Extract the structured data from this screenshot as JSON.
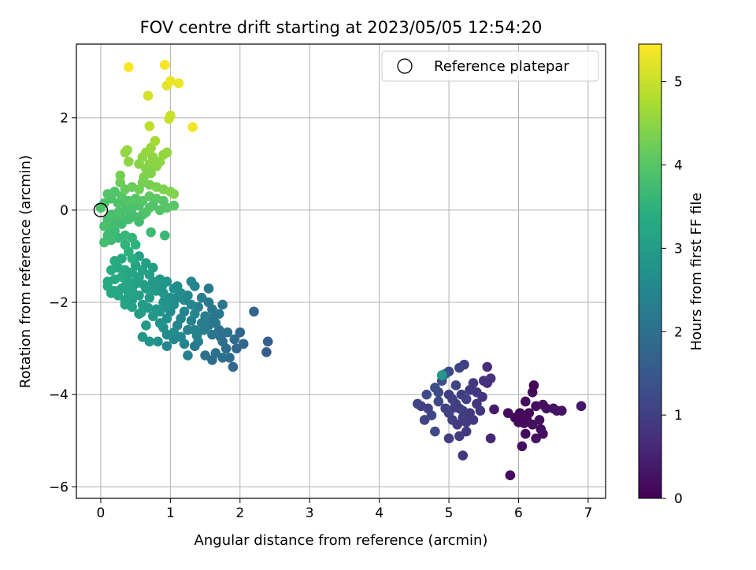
{
  "chart_data": {
    "type": "scatter",
    "title": "FOV centre drift starting at 2023/05/05 12:54:20",
    "xlabel": "Angular distance from reference (arcmin)",
    "ylabel": "Rotation from reference (arcmin)",
    "xlim": [
      -0.35,
      7.25
    ],
    "ylim": [
      -6.25,
      3.6
    ],
    "xticks": [
      0,
      1,
      2,
      3,
      4,
      5,
      6,
      7
    ],
    "yticks": [
      -6,
      -4,
      -2,
      0,
      2
    ],
    "grid": true,
    "legend": {
      "placement": "top-right",
      "entries": [
        {
          "label": "Reference platepar",
          "marker": "open-circle"
        }
      ]
    },
    "reference_point": {
      "x": 0,
      "y": 0
    },
    "colorbar": {
      "label": "Hours from first FF file",
      "range": [
        0,
        5.45
      ],
      "ticks": [
        0,
        1,
        2,
        3,
        4,
        5
      ],
      "colormap": "viridis"
    },
    "points": [
      [
        5.88,
        -5.75,
        0.15
      ],
      [
        6.05,
        -5.12,
        0.2
      ],
      [
        6.25,
        -4.95,
        0.25
      ],
      [
        6.1,
        -4.85,
        0.15
      ],
      [
        6.35,
        -4.85,
        0.2
      ],
      [
        6.32,
        -4.75,
        0.22
      ],
      [
        6.2,
        -4.65,
        0.18
      ],
      [
        6.0,
        -4.6,
        0.12
      ],
      [
        6.12,
        -4.55,
        0.16
      ],
      [
        5.95,
        -4.5,
        0.1
      ],
      [
        6.05,
        -4.45,
        0.14
      ],
      [
        6.15,
        -4.4,
        0.13
      ],
      [
        5.85,
        -4.4,
        0.18
      ],
      [
        6.3,
        -4.55,
        0.22
      ],
      [
        6.4,
        -4.3,
        0.25
      ],
      [
        6.5,
        -4.3,
        0.28
      ],
      [
        6.55,
        -4.35,
        0.3
      ],
      [
        6.62,
        -4.35,
        0.3
      ],
      [
        6.9,
        -4.25,
        0.35
      ],
      [
        6.25,
        -4.25,
        0.2
      ],
      [
        6.35,
        -4.22,
        0.24
      ],
      [
        6.1,
        -4.15,
        0.15
      ],
      [
        6.2,
        -3.95,
        0.1
      ],
      [
        6.22,
        -3.8,
        0.1
      ],
      [
        5.65,
        -4.32,
        0.4
      ],
      [
        6.02,
        -4.4,
        0.12
      ],
      [
        6.08,
        -4.62,
        0.16
      ],
      [
        4.55,
        -4.2,
        1.1
      ],
      [
        4.6,
        -4.25,
        1.0
      ],
      [
        4.7,
        -4.3,
        1.05
      ],
      [
        4.65,
        -4.55,
        1.1
      ],
      [
        4.8,
        -4.8,
        1.2
      ],
      [
        4.75,
        -4.45,
        1.15
      ],
      [
        4.68,
        -4.0,
        1.25
      ],
      [
        4.8,
        -3.85,
        1.3
      ],
      [
        4.85,
        -3.95,
        1.2
      ],
      [
        4.9,
        -3.7,
        1.3
      ],
      [
        4.95,
        -3.55,
        1.35
      ],
      [
        5.0,
        -3.5,
        1.2
      ],
      [
        5.1,
        -3.8,
        1.1
      ],
      [
        5.15,
        -3.42,
        1.1
      ],
      [
        5.22,
        -3.35,
        1.0
      ],
      [
        5.0,
        -4.0,
        1.0
      ],
      [
        5.05,
        -4.1,
        1.05
      ],
      [
        5.1,
        -4.2,
        1.0
      ],
      [
        5.15,
        -4.3,
        0.95
      ],
      [
        5.2,
        -4.35,
        1.0
      ],
      [
        5.25,
        -4.1,
        1.05
      ],
      [
        4.95,
        -4.3,
        1.1
      ],
      [
        5.0,
        -4.4,
        1.05
      ],
      [
        5.05,
        -4.55,
        1.0
      ],
      [
        5.12,
        -4.65,
        0.9
      ],
      [
        5.2,
        -4.5,
        0.95
      ],
      [
        5.3,
        -4.4,
        0.9
      ],
      [
        5.35,
        -4.55,
        0.9
      ],
      [
        5.4,
        -4.2,
        0.85
      ],
      [
        5.45,
        -4.35,
        0.85
      ],
      [
        5.48,
        -4.05,
        0.8
      ],
      [
        5.4,
        -3.95,
        0.85
      ],
      [
        5.3,
        -3.9,
        0.9
      ],
      [
        5.5,
        -3.7,
        0.8
      ],
      [
        5.55,
        -3.4,
        0.7
      ],
      [
        5.6,
        -3.65,
        0.75
      ],
      [
        5.35,
        -3.75,
        0.9
      ],
      [
        5.55,
        -3.75,
        0.7
      ],
      [
        5.25,
        -4.8,
        0.9
      ],
      [
        5.15,
        -4.9,
        0.95
      ],
      [
        5.0,
        -4.95,
        1.0
      ],
      [
        5.2,
        -5.32,
        0.85
      ],
      [
        5.6,
        -4.95,
        0.6
      ],
      [
        4.85,
        -4.15,
        1.2
      ],
      [
        5.08,
        -4.28,
        1.0
      ],
      [
        5.25,
        -4.6,
        0.95
      ],
      [
        5.18,
        -4.0,
        1.0
      ],
      [
        4.9,
        -3.58,
        2.9
      ],
      [
        0.95,
        -2.95,
        2.5
      ],
      [
        1.25,
        -3.15,
        2.4
      ],
      [
        1.35,
        -2.95,
        2.2
      ],
      [
        1.4,
        -2.85,
        2.3
      ],
      [
        1.5,
        -3.15,
        2.0
      ],
      [
        1.6,
        -3.25,
        1.9
      ],
      [
        1.65,
        -3.1,
        2.0
      ],
      [
        1.75,
        -3.2,
        2.0
      ],
      [
        1.9,
        -3.4,
        1.8
      ],
      [
        1.85,
        -3.2,
        1.9
      ],
      [
        1.95,
        -3.0,
        1.8
      ],
      [
        1.8,
        -3.0,
        1.9
      ],
      [
        2.05,
        -2.9,
        1.8
      ],
      [
        2.0,
        -2.65,
        1.8
      ],
      [
        2.2,
        -2.2,
        1.7
      ],
      [
        2.4,
        -2.85,
        1.6
      ],
      [
        2.38,
        -3.08,
        1.6
      ],
      [
        1.92,
        -2.8,
        1.9
      ],
      [
        1.75,
        -2.85,
        1.95
      ],
      [
        1.7,
        -2.6,
        2.0
      ],
      [
        1.6,
        -2.7,
        2.1
      ],
      [
        1.55,
        -2.5,
        2.2
      ],
      [
        1.65,
        -2.45,
        2.15
      ],
      [
        1.7,
        -2.25,
        2.1
      ],
      [
        1.75,
        -2.05,
        2.1
      ],
      [
        1.6,
        -2.15,
        2.2
      ],
      [
        1.5,
        -2.3,
        2.3
      ],
      [
        1.45,
        -2.45,
        2.3
      ],
      [
        1.35,
        -2.6,
        2.4
      ],
      [
        1.25,
        -2.6,
        2.4
      ],
      [
        1.3,
        -2.4,
        2.4
      ],
      [
        1.35,
        -2.25,
        2.5
      ],
      [
        1.2,
        -2.2,
        2.5
      ],
      [
        1.15,
        -2.35,
        2.5
      ],
      [
        1.1,
        -2.5,
        2.5
      ],
      [
        1.05,
        -2.65,
        2.6
      ],
      [
        1.15,
        -2.75,
        2.5
      ],
      [
        1.2,
        -2.9,
        2.45
      ],
      [
        1.05,
        -2.8,
        2.55
      ],
      [
        0.95,
        -2.7,
        2.6
      ],
      [
        0.9,
        -2.55,
        2.7
      ],
      [
        0.85,
        -2.45,
        2.8
      ],
      [
        0.95,
        -2.35,
        2.7
      ],
      [
        1.0,
        -2.2,
        2.6
      ],
      [
        1.05,
        -2.05,
        2.6
      ],
      [
        1.1,
        -1.9,
        2.6
      ],
      [
        1.15,
        -1.8,
        2.6
      ],
      [
        1.2,
        -1.95,
        2.5
      ],
      [
        1.3,
        -2.05,
        2.5
      ],
      [
        1.25,
        -1.85,
        2.5
      ],
      [
        1.35,
        -1.65,
        2.4
      ],
      [
        1.05,
        -1.7,
        2.7
      ],
      [
        1.0,
        -1.9,
        2.7
      ],
      [
        0.9,
        -2.0,
        2.8
      ],
      [
        0.8,
        -2.15,
        2.8
      ],
      [
        0.75,
        -2.3,
        2.9
      ],
      [
        0.85,
        -2.2,
        2.85
      ],
      [
        0.95,
        -2.1,
        2.75
      ],
      [
        1.1,
        -1.65,
        2.65
      ],
      [
        1.3,
        -1.55,
        2.5
      ],
      [
        1.55,
        -1.7,
        2.2
      ],
      [
        1.45,
        -1.9,
        2.3
      ],
      [
        1.55,
        -2.0,
        2.2
      ],
      [
        1.4,
        -2.1,
        2.35
      ],
      [
        1.52,
        -2.4,
        2.25
      ],
      [
        1.6,
        -2.35,
        2.2
      ],
      [
        1.38,
        -2.72,
        2.35
      ],
      [
        1.48,
        -2.6,
        2.3
      ],
      [
        1.82,
        -2.65,
        2.0
      ],
      [
        1.72,
        -2.75,
        2.05
      ],
      [
        0.82,
        -2.85,
        2.7
      ],
      [
        0.7,
        -2.85,
        2.8
      ],
      [
        0.6,
        -2.75,
        2.9
      ],
      [
        0.65,
        -2.5,
        2.95
      ],
      [
        0.55,
        -2.25,
        3.0
      ],
      [
        0.6,
        -2.05,
        3.0
      ],
      [
        0.7,
        -1.9,
        2.95
      ],
      [
        0.8,
        -1.75,
        2.9
      ],
      [
        0.9,
        -1.8,
        2.85
      ],
      [
        0.95,
        -1.55,
        2.8
      ],
      [
        0.85,
        -1.5,
        2.85
      ],
      [
        0.75,
        -1.55,
        2.9
      ],
      [
        0.65,
        -1.7,
        3.0
      ],
      [
        0.55,
        -1.85,
        3.05
      ],
      [
        0.45,
        -1.95,
        3.1
      ],
      [
        0.35,
        -2.05,
        3.15
      ],
      [
        0.4,
        -1.8,
        3.15
      ],
      [
        0.3,
        -1.7,
        3.2
      ],
      [
        0.25,
        -1.85,
        3.2
      ],
      [
        0.2,
        -1.75,
        3.25
      ],
      [
        0.15,
        -1.8,
        3.25
      ],
      [
        0.1,
        -1.55,
        3.3
      ],
      [
        0.2,
        -1.5,
        3.3
      ],
      [
        0.3,
        -1.45,
        3.3
      ],
      [
        0.4,
        -1.55,
        3.2
      ],
      [
        0.5,
        -1.6,
        3.1
      ],
      [
        0.55,
        -1.45,
        3.1
      ],
      [
        0.6,
        -1.3,
        3.1
      ],
      [
        0.7,
        -1.4,
        3.0
      ],
      [
        0.75,
        -1.25,
        3.0
      ],
      [
        0.65,
        -1.15,
        3.05
      ],
      [
        0.55,
        -1.0,
        3.1
      ],
      [
        0.5,
        -1.2,
        3.15
      ],
      [
        0.45,
        -1.35,
        3.2
      ],
      [
        0.35,
        -1.3,
        3.25
      ],
      [
        0.25,
        -1.25,
        3.3
      ],
      [
        0.2,
        -1.1,
        3.35
      ],
      [
        0.3,
        -1.05,
        3.3
      ],
      [
        0.15,
        -1.3,
        3.35
      ],
      [
        0.1,
        -1.65,
        3.3
      ],
      [
        0.35,
        -1.65,
        3.2
      ],
      [
        0.45,
        -1.75,
        3.15
      ],
      [
        0.62,
        -1.62,
        3.05
      ],
      [
        0.72,
        -1.75,
        2.95
      ],
      [
        0.52,
        -1.52,
        3.12
      ],
      [
        0.38,
        -1.45,
        3.22
      ],
      [
        0.58,
        -2.22,
        3.0
      ],
      [
        0.68,
        -2.12,
        2.95
      ],
      [
        0.45,
        -2.1,
        3.1
      ],
      [
        0.35,
        -1.95,
        3.15
      ],
      [
        0.92,
        -1.95,
        2.8
      ],
      [
        0.88,
        -1.65,
        2.85
      ],
      [
        0.78,
        -1.6,
        2.9
      ],
      [
        0.2,
        -0.45,
        3.6
      ],
      [
        0.1,
        -0.55,
        3.7
      ],
      [
        0.05,
        -0.7,
        3.8
      ],
      [
        0.15,
        -0.65,
        3.7
      ],
      [
        0.25,
        -0.6,
        3.6
      ],
      [
        0.35,
        -0.75,
        3.5
      ],
      [
        0.4,
        -0.9,
        3.45
      ],
      [
        0.45,
        -1.05,
        3.4
      ],
      [
        0.35,
        -0.55,
        3.6
      ],
      [
        0.45,
        -0.6,
        3.55
      ],
      [
        0.5,
        -0.75,
        3.5
      ],
      [
        0.3,
        -0.3,
        3.7
      ],
      [
        0.2,
        -0.25,
        3.75
      ],
      [
        0.1,
        -0.2,
        3.8
      ],
      [
        0.05,
        -0.35,
        3.85
      ],
      [
        0.15,
        -0.1,
        3.85
      ],
      [
        0.25,
        -0.05,
        3.85
      ],
      [
        0.35,
        0.0,
        3.85
      ],
      [
        0.45,
        0.05,
        3.85
      ],
      [
        0.55,
        0.1,
        3.9
      ],
      [
        0.6,
        -0.1,
        3.85
      ],
      [
        0.5,
        -0.15,
        3.8
      ],
      [
        0.4,
        -0.2,
        3.75
      ],
      [
        0.65,
        -0.05,
        3.9
      ],
      [
        0.7,
        0.05,
        3.95
      ],
      [
        0.75,
        0.1,
        3.95
      ],
      [
        0.85,
        0.0,
        3.95
      ],
      [
        0.95,
        0.05,
        4.0
      ],
      [
        1.05,
        0.1,
        4.0
      ],
      [
        0.9,
        0.2,
        4.0
      ],
      [
        0.8,
        0.25,
        4.05
      ],
      [
        0.7,
        0.3,
        4.1
      ],
      [
        0.6,
        0.2,
        4.0
      ],
      [
        0.5,
        0.25,
        4.0
      ],
      [
        0.4,
        0.2,
        3.95
      ],
      [
        0.3,
        0.3,
        3.95
      ],
      [
        0.2,
        0.4,
        3.9
      ],
      [
        0.15,
        0.25,
        3.9
      ],
      [
        0.05,
        0.15,
        3.9
      ],
      [
        0.0,
        0.05,
        3.9
      ],
      [
        0.1,
        0.35,
        3.95
      ],
      [
        0.25,
        0.15,
        3.9
      ],
      [
        0.35,
        0.15,
        3.9
      ],
      [
        0.45,
        -0.1,
        3.8
      ],
      [
        0.55,
        -0.25,
        3.75
      ],
      [
        0.72,
        -0.48,
        3.7
      ],
      [
        0.92,
        -0.55,
        3.65
      ],
      [
        0.1,
        -0.35,
        3.75
      ],
      [
        0.18,
        -0.45,
        3.7
      ],
      [
        0.28,
        -0.12,
        3.8
      ],
      [
        0.28,
        0.6,
        4.2
      ],
      [
        0.35,
        0.45,
        4.15
      ],
      [
        0.45,
        0.5,
        4.2
      ],
      [
        0.55,
        0.45,
        4.25
      ],
      [
        0.6,
        0.6,
        4.3
      ],
      [
        0.7,
        0.55,
        4.3
      ],
      [
        0.8,
        0.5,
        4.35
      ],
      [
        0.9,
        0.45,
        4.35
      ],
      [
        1.0,
        0.4,
        4.4
      ],
      [
        1.05,
        0.35,
        4.4
      ],
      [
        0.62,
        0.72,
        4.35
      ],
      [
        0.72,
        0.8,
        4.4
      ],
      [
        0.65,
        0.9,
        4.4
      ],
      [
        0.7,
        1.0,
        4.45
      ],
      [
        0.75,
        1.1,
        4.45
      ],
      [
        0.8,
        0.95,
        4.45
      ],
      [
        0.6,
        1.15,
        4.5
      ],
      [
        0.65,
        1.25,
        4.55
      ],
      [
        0.72,
        1.35,
        4.6
      ],
      [
        0.55,
        1.0,
        4.45
      ],
      [
        0.4,
        1.05,
        4.5
      ],
      [
        0.35,
        1.25,
        4.55
      ],
      [
        0.38,
        1.3,
        4.55
      ],
      [
        0.28,
        0.75,
        4.3
      ],
      [
        0.85,
        1.05,
        4.5
      ],
      [
        0.9,
        1.2,
        4.55
      ],
      [
        0.95,
        1.25,
        4.55
      ],
      [
        0.75,
        1.15,
        4.5
      ],
      [
        0.78,
        1.5,
        4.7
      ],
      [
        0.7,
        1.82,
        4.9
      ],
      [
        0.68,
        2.48,
        5.1
      ],
      [
        0.98,
        1.98,
        5.0
      ],
      [
        1.0,
        2.05,
        5.0
      ],
      [
        0.95,
        2.7,
        5.2
      ],
      [
        1.0,
        2.8,
        5.3
      ],
      [
        1.12,
        2.75,
        5.3
      ],
      [
        0.92,
        3.15,
        5.4
      ],
      [
        0.4,
        3.1,
        5.4
      ],
      [
        1.32,
        1.8,
        5.35
      ]
    ]
  }
}
